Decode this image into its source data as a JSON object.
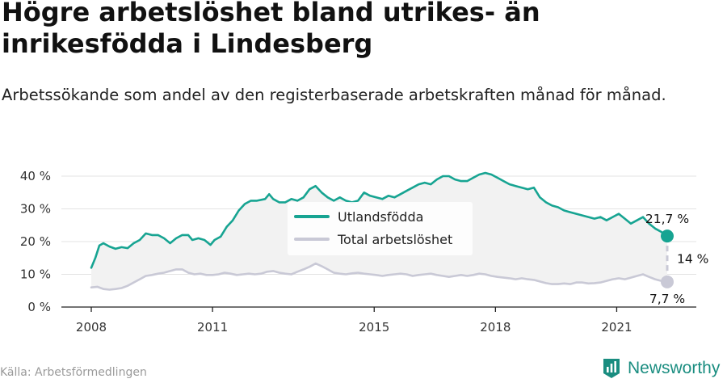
{
  "title": "Högre arbetslöshet bland utrikes- än inrikesfödda i Lindesberg",
  "subtitle": "Arbetssökande som andel av den registerbaserade arbetskraften månad för månad.",
  "source": "Källa: Arbetsförmedlingen",
  "brand": "Newsworthy",
  "colors": {
    "foreign": "#17a492",
    "total": "#c9c9d6",
    "grid": "#e3e3e3",
    "band": "#f2f2f2",
    "brand": "#1a8d80"
  },
  "chart_data": {
    "type": "line",
    "ylim": [
      0,
      40
    ],
    "yticks": [
      0,
      10,
      20,
      30,
      40
    ],
    "yticklabels": [
      "0 %",
      "10 %",
      "20 %",
      "30 %",
      "40 %"
    ],
    "xlim": [
      2008.0,
      2022.25
    ],
    "xticks": [
      2008,
      2011,
      2015,
      2018,
      2021
    ],
    "xticklabels": [
      "2008",
      "2011",
      "2015",
      "2018",
      "2021"
    ],
    "grid": true,
    "legend": "center",
    "series": [
      {
        "name": "Utlandsfödda",
        "color": "#17a492",
        "end_label": "21,7 %",
        "points": [
          [
            2008.0,
            12.0
          ],
          [
            2008.1,
            15.0
          ],
          [
            2008.2,
            18.8
          ],
          [
            2008.3,
            19.5
          ],
          [
            2008.45,
            18.5
          ],
          [
            2008.6,
            17.8
          ],
          [
            2008.75,
            18.3
          ],
          [
            2008.9,
            18.0
          ],
          [
            2009.05,
            19.5
          ],
          [
            2009.2,
            20.5
          ],
          [
            2009.35,
            22.5
          ],
          [
            2009.5,
            22.0
          ],
          [
            2009.65,
            22.0
          ],
          [
            2009.8,
            21.0
          ],
          [
            2009.95,
            19.5
          ],
          [
            2010.1,
            21.0
          ],
          [
            2010.25,
            22.0
          ],
          [
            2010.4,
            22.0
          ],
          [
            2010.5,
            20.5
          ],
          [
            2010.65,
            21.0
          ],
          [
            2010.8,
            20.5
          ],
          [
            2010.95,
            19.0
          ],
          [
            2011.05,
            20.5
          ],
          [
            2011.2,
            21.5
          ],
          [
            2011.35,
            24.5
          ],
          [
            2011.5,
            26.5
          ],
          [
            2011.65,
            29.5
          ],
          [
            2011.8,
            31.5
          ],
          [
            2011.95,
            32.5
          ],
          [
            2012.1,
            32.5
          ],
          [
            2012.3,
            33.0
          ],
          [
            2012.4,
            34.5
          ],
          [
            2012.5,
            33.0
          ],
          [
            2012.65,
            32.0
          ],
          [
            2012.8,
            32.0
          ],
          [
            2012.95,
            33.0
          ],
          [
            2013.1,
            32.5
          ],
          [
            2013.25,
            33.5
          ],
          [
            2013.4,
            36.0
          ],
          [
            2013.55,
            37.0
          ],
          [
            2013.7,
            35.0
          ],
          [
            2013.85,
            33.5
          ],
          [
            2014.0,
            32.5
          ],
          [
            2014.15,
            33.5
          ],
          [
            2014.3,
            32.5
          ],
          [
            2014.45,
            32.0
          ],
          [
            2014.6,
            32.5
          ],
          [
            2014.75,
            35.0
          ],
          [
            2014.9,
            34.0
          ],
          [
            2015.05,
            33.5
          ],
          [
            2015.2,
            33.0
          ],
          [
            2015.35,
            34.0
          ],
          [
            2015.5,
            33.5
          ],
          [
            2015.65,
            34.5
          ],
          [
            2015.8,
            35.5
          ],
          [
            2015.95,
            36.5
          ],
          [
            2016.1,
            37.5
          ],
          [
            2016.25,
            38.0
          ],
          [
            2016.4,
            37.5
          ],
          [
            2016.55,
            39.0
          ],
          [
            2016.7,
            40.0
          ],
          [
            2016.85,
            40.0
          ],
          [
            2017.0,
            39.0
          ],
          [
            2017.15,
            38.5
          ],
          [
            2017.3,
            38.5
          ],
          [
            2017.45,
            39.5
          ],
          [
            2017.6,
            40.5
          ],
          [
            2017.75,
            41.0
          ],
          [
            2017.9,
            40.5
          ],
          [
            2018.05,
            39.5
          ],
          [
            2018.2,
            38.5
          ],
          [
            2018.35,
            37.5
          ],
          [
            2018.5,
            37.0
          ],
          [
            2018.65,
            36.5
          ],
          [
            2018.8,
            36.0
          ],
          [
            2018.95,
            36.5
          ],
          [
            2019.1,
            33.5
          ],
          [
            2019.25,
            32.0
          ],
          [
            2019.4,
            31.0
          ],
          [
            2019.55,
            30.5
          ],
          [
            2019.7,
            29.5
          ],
          [
            2019.85,
            29.0
          ],
          [
            2020.0,
            28.5
          ],
          [
            2020.15,
            28.0
          ],
          [
            2020.3,
            27.5
          ],
          [
            2020.45,
            27.0
          ],
          [
            2020.6,
            27.5
          ],
          [
            2020.75,
            26.5
          ],
          [
            2020.9,
            27.5
          ],
          [
            2021.05,
            28.5
          ],
          [
            2021.2,
            27.0
          ],
          [
            2021.35,
            25.5
          ],
          [
            2021.5,
            26.5
          ],
          [
            2021.65,
            27.5
          ],
          [
            2021.8,
            25.5
          ],
          [
            2021.95,
            24.0
          ],
          [
            2022.1,
            23.0
          ],
          [
            2022.25,
            21.7
          ]
        ]
      },
      {
        "name": "Total arbetslöshet",
        "color": "#c9c9d6",
        "end_label": "7,7 %",
        "points": [
          [
            2008.0,
            6.0
          ],
          [
            2008.15,
            6.2
          ],
          [
            2008.3,
            5.5
          ],
          [
            2008.45,
            5.3
          ],
          [
            2008.6,
            5.5
          ],
          [
            2008.75,
            5.8
          ],
          [
            2008.9,
            6.5
          ],
          [
            2009.05,
            7.5
          ],
          [
            2009.2,
            8.5
          ],
          [
            2009.35,
            9.5
          ],
          [
            2009.5,
            9.8
          ],
          [
            2009.65,
            10.2
          ],
          [
            2009.8,
            10.5
          ],
          [
            2009.95,
            11.0
          ],
          [
            2010.1,
            11.5
          ],
          [
            2010.25,
            11.5
          ],
          [
            2010.4,
            10.5
          ],
          [
            2010.55,
            10.0
          ],
          [
            2010.7,
            10.2
          ],
          [
            2010.85,
            9.8
          ],
          [
            2011.0,
            9.8
          ],
          [
            2011.15,
            10.0
          ],
          [
            2011.3,
            10.5
          ],
          [
            2011.45,
            10.2
          ],
          [
            2011.6,
            9.8
          ],
          [
            2011.75,
            10.0
          ],
          [
            2011.9,
            10.2
          ],
          [
            2012.05,
            10.0
          ],
          [
            2012.2,
            10.2
          ],
          [
            2012.35,
            10.8
          ],
          [
            2012.5,
            11.0
          ],
          [
            2012.65,
            10.5
          ],
          [
            2012.8,
            10.2
          ],
          [
            2012.95,
            10.0
          ],
          [
            2013.1,
            10.8
          ],
          [
            2013.25,
            11.5
          ],
          [
            2013.4,
            12.3
          ],
          [
            2013.55,
            13.3
          ],
          [
            2013.7,
            12.5
          ],
          [
            2013.85,
            11.5
          ],
          [
            2014.0,
            10.5
          ],
          [
            2014.15,
            10.2
          ],
          [
            2014.3,
            10.0
          ],
          [
            2014.45,
            10.3
          ],
          [
            2014.6,
            10.5
          ],
          [
            2014.75,
            10.2
          ],
          [
            2014.9,
            10.0
          ],
          [
            2015.05,
            9.8
          ],
          [
            2015.2,
            9.5
          ],
          [
            2015.35,
            9.8
          ],
          [
            2015.5,
            10.0
          ],
          [
            2015.65,
            10.2
          ],
          [
            2015.8,
            10.0
          ],
          [
            2015.95,
            9.5
          ],
          [
            2016.1,
            9.8
          ],
          [
            2016.25,
            10.0
          ],
          [
            2016.4,
            10.2
          ],
          [
            2016.55,
            9.8
          ],
          [
            2016.7,
            9.5
          ],
          [
            2016.85,
            9.2
          ],
          [
            2017.0,
            9.5
          ],
          [
            2017.15,
            9.8
          ],
          [
            2017.3,
            9.5
          ],
          [
            2017.45,
            9.8
          ],
          [
            2017.6,
            10.2
          ],
          [
            2017.75,
            10.0
          ],
          [
            2017.9,
            9.5
          ],
          [
            2018.05,
            9.2
          ],
          [
            2018.2,
            9.0
          ],
          [
            2018.35,
            8.8
          ],
          [
            2018.5,
            8.5
          ],
          [
            2018.65,
            8.8
          ],
          [
            2018.8,
            8.5
          ],
          [
            2018.95,
            8.3
          ],
          [
            2019.1,
            7.8
          ],
          [
            2019.25,
            7.3
          ],
          [
            2019.4,
            7.0
          ],
          [
            2019.55,
            7.0
          ],
          [
            2019.7,
            7.2
          ],
          [
            2019.85,
            7.0
          ],
          [
            2020.0,
            7.5
          ],
          [
            2020.15,
            7.5
          ],
          [
            2020.3,
            7.2
          ],
          [
            2020.45,
            7.3
          ],
          [
            2020.6,
            7.5
          ],
          [
            2020.75,
            8.0
          ],
          [
            2020.9,
            8.5
          ],
          [
            2021.05,
            8.8
          ],
          [
            2021.2,
            8.5
          ],
          [
            2021.35,
            9.0
          ],
          [
            2021.5,
            9.5
          ],
          [
            2021.65,
            10.0
          ],
          [
            2021.8,
            9.2
          ],
          [
            2021.95,
            8.5
          ],
          [
            2022.1,
            8.0
          ],
          [
            2022.25,
            7.7
          ]
        ]
      }
    ],
    "difference_label": "14 %"
  }
}
